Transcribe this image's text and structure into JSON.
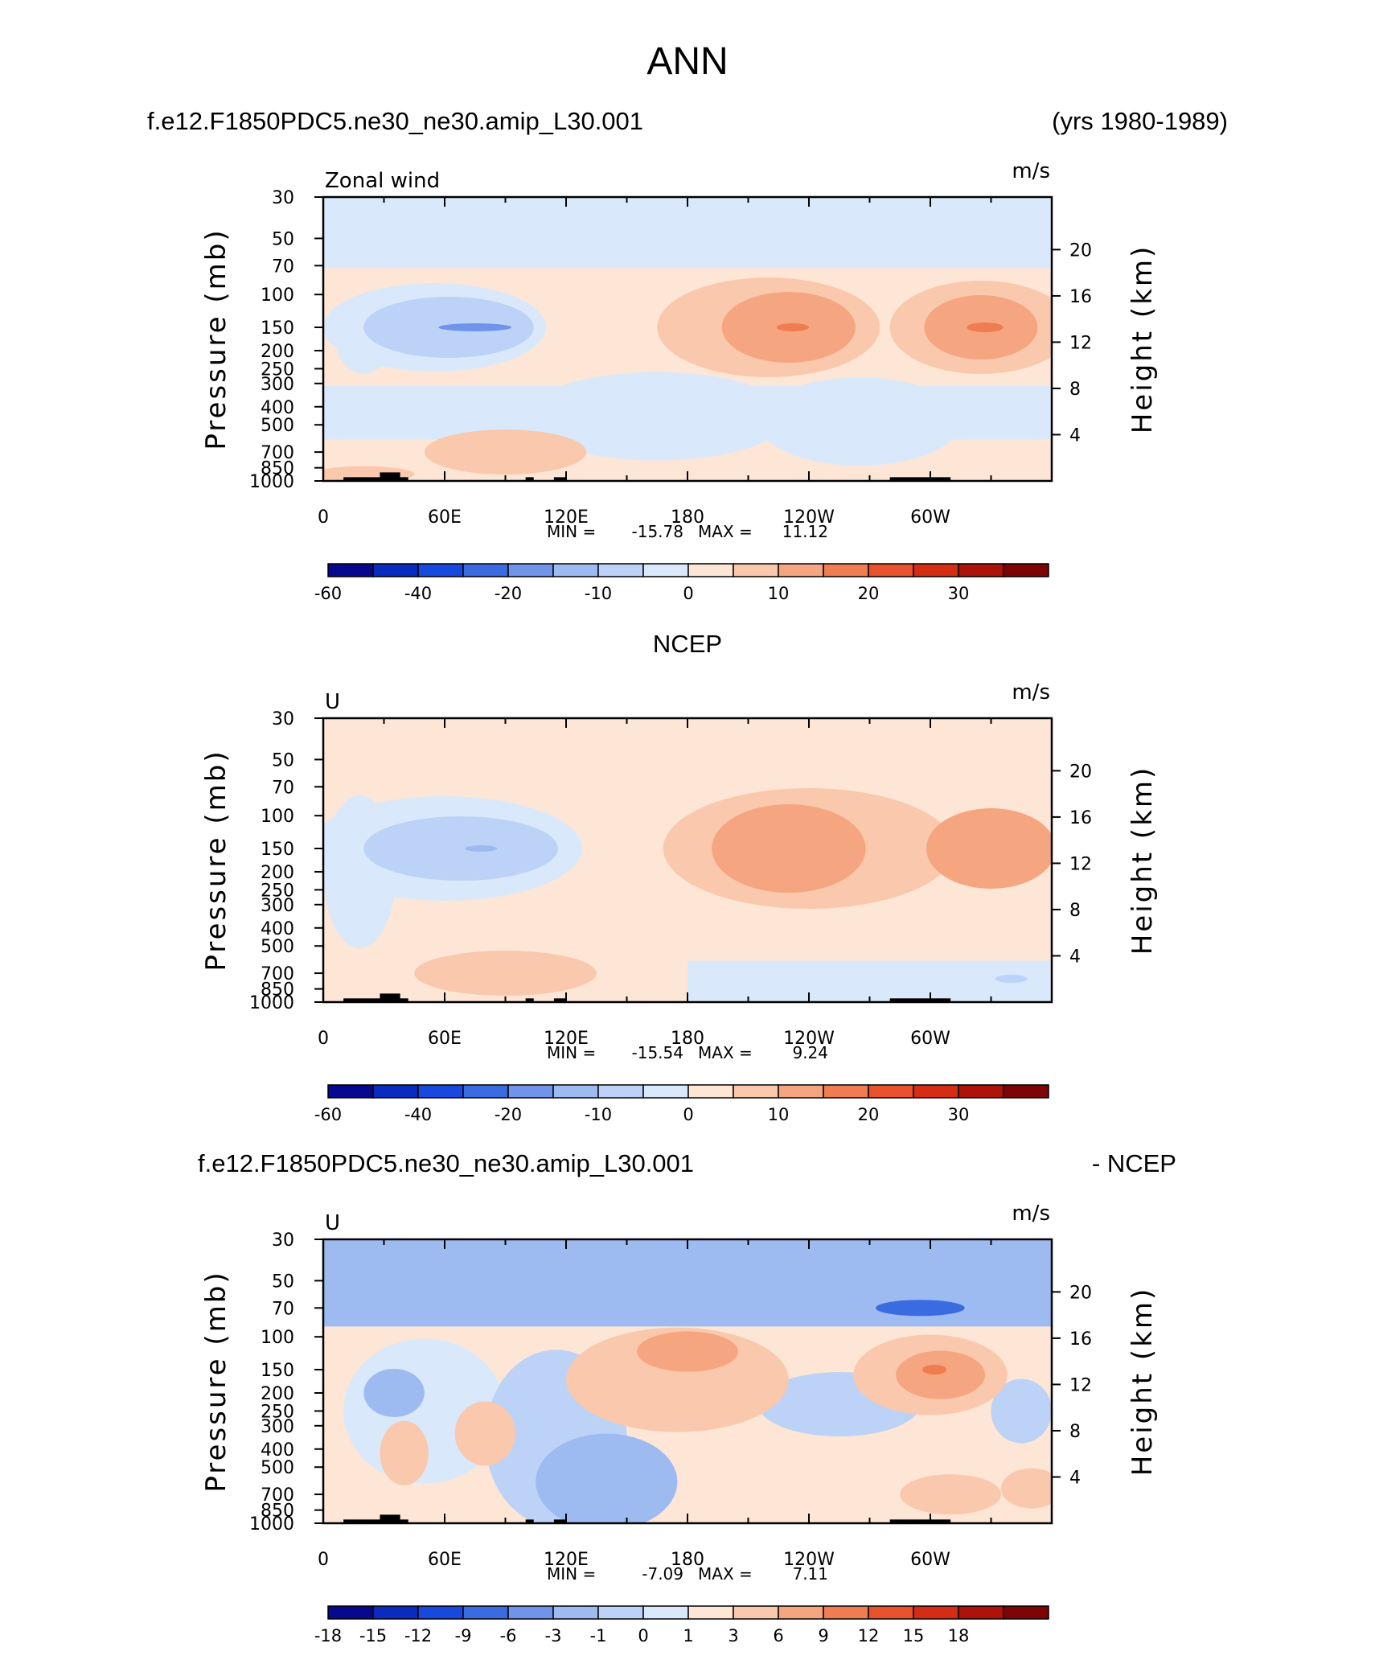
{
  "figure": {
    "title": "ANN",
    "case_name": "f.e12.F1850PDC5.ne30_ne30.amip_L30.001",
    "years": "(yrs 1980-1989)",
    "obs_title": "NCEP",
    "diff_case": "f.e12.F1850PDC5.ne30_ne30.amip_L30.001",
    "diff_suffix": "- NCEP"
  },
  "chart_data": [
    {
      "type": "contour",
      "panel": "model",
      "left_label": "Zonal wind",
      "right_label": "m/s",
      "xlabel": "",
      "ylabel": "Pressure (mb)",
      "y2label": "Height (km)",
      "x_ticks": [
        "0",
        "60E",
        "120E",
        "180",
        "120W",
        "60W"
      ],
      "y_ticks": [
        "30",
        "50",
        "70",
        "100",
        "150",
        "200",
        "250",
        "300",
        "400",
        "500",
        "700",
        "850",
        "1000"
      ],
      "y2_ticks": [
        "20",
        "16",
        "12",
        "8",
        "4"
      ],
      "stats": {
        "min_label": "MIN =",
        "min": "-15.78",
        "max_label": "MAX =",
        "max": "11.12"
      },
      "levels": [
        -70,
        -60,
        -50,
        -40,
        -30,
        -20,
        -15,
        -10,
        -5,
        0,
        5,
        10,
        15,
        20,
        25,
        30,
        35
      ],
      "colorbar_labels": [
        "-60",
        "-40",
        "-20",
        "-10",
        "0",
        "10",
        "20",
        "30"
      ]
    },
    {
      "type": "contour",
      "panel": "obs",
      "left_label": "U",
      "right_label": "m/s",
      "xlabel": "",
      "ylabel": "Pressure (mb)",
      "y2label": "Height (km)",
      "x_ticks": [
        "0",
        "60E",
        "120E",
        "180",
        "120W",
        "60W"
      ],
      "y_ticks": [
        "30",
        "50",
        "70",
        "100",
        "150",
        "200",
        "250",
        "300",
        "400",
        "500",
        "700",
        "850",
        "1000"
      ],
      "y2_ticks": [
        "20",
        "16",
        "12",
        "8",
        "4"
      ],
      "stats": {
        "min_label": "MIN =",
        "min": "-15.54",
        "max_label": "MAX =",
        "max": "9.24"
      },
      "levels": [
        -70,
        -60,
        -50,
        -40,
        -30,
        -20,
        -15,
        -10,
        -5,
        0,
        5,
        10,
        15,
        20,
        25,
        30,
        35
      ],
      "colorbar_labels": [
        "-60",
        "-40",
        "-20",
        "-10",
        "0",
        "10",
        "20",
        "30"
      ]
    },
    {
      "type": "contour",
      "panel": "diff",
      "left_label": "U",
      "right_label": "m/s",
      "xlabel": "",
      "ylabel": "Pressure (mb)",
      "y2label": "Height (km)",
      "x_ticks": [
        "0",
        "60E",
        "120E",
        "180",
        "120W",
        "60W"
      ],
      "y_ticks": [
        "30",
        "50",
        "70",
        "100",
        "150",
        "200",
        "250",
        "300",
        "400",
        "500",
        "700",
        "850",
        "1000"
      ],
      "y2_ticks": [
        "20",
        "16",
        "12",
        "8",
        "4"
      ],
      "stats": {
        "min_label": "MIN =",
        "min": "-7.09",
        "max_label": "MAX =",
        "max": "7.11"
      },
      "levels": [
        -21,
        -18,
        -15,
        -12,
        -9,
        -6,
        -3,
        -1,
        0,
        1,
        3,
        6,
        9,
        12,
        15,
        18,
        21
      ],
      "colorbar_labels": [
        "-18",
        "-15",
        "-12",
        "-9",
        "-6",
        "-3",
        "-1",
        "0",
        "1",
        "3",
        "6",
        "9",
        "12",
        "15",
        "18"
      ]
    }
  ],
  "colors": {
    "palette": [
      "#08088e",
      "#0a2bbf",
      "#1749df",
      "#3a6be0",
      "#6f94ea",
      "#9dbbf1",
      "#bcd2f7",
      "#d9e9fb",
      "#fde6d6",
      "#f9c8ad",
      "#f5a57f",
      "#f07c52",
      "#e8532d",
      "#d52c14",
      "#ad130b",
      "#7e0505"
    ],
    "land": "#000000"
  }
}
